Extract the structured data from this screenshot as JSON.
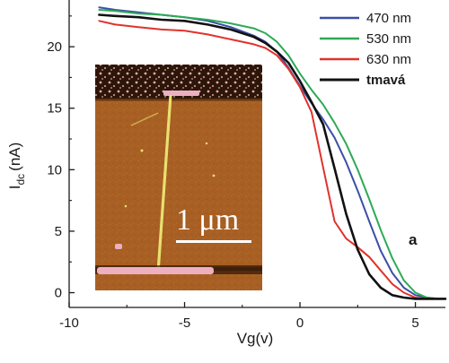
{
  "chart_data": {
    "type": "line",
    "xlabel": "Vg(v)",
    "ylabel_main": "I",
    "ylabel_sub": "dc",
    "ylabel_unit": "(nA)",
    "xlim": [
      -10,
      6.3
    ],
    "ylim": [
      -1.2,
      23.8
    ],
    "x_ticks": [
      -10,
      -5,
      0,
      5
    ],
    "x_tick_labels": [
      "-10",
      "-5",
      "0",
      "5"
    ],
    "y_ticks": [
      0,
      5,
      10,
      15,
      20
    ],
    "y_tick_labels": [
      "0",
      "5",
      "10",
      "15",
      "20"
    ],
    "grid": false,
    "legend_position": "top-right",
    "panel_label": "a",
    "inset": {
      "kind": "AFM image",
      "scale_bar_label": "1 μm",
      "colors": {
        "background": "#a85f23",
        "wire": "#e8e070",
        "pads": "#ecb0c0",
        "dark_band": "#2c1608"
      }
    },
    "series": [
      {
        "name": "470 nm",
        "color": "#3b4fa8",
        "bold": false,
        "x": [
          -8.7,
          -8.0,
          -7.0,
          -6.0,
          -5.0,
          -4.0,
          -3.0,
          -2.0,
          -1.5,
          -1.0,
          -0.5,
          0.0,
          0.5,
          1.0,
          1.5,
          2.0,
          2.5,
          3.0,
          3.5,
          4.0,
          4.5,
          5.0,
          5.5,
          6.0,
          6.3
        ],
        "y": [
          23.2,
          23.0,
          22.8,
          22.6,
          22.4,
          22.1,
          21.6,
          20.9,
          20.4,
          19.6,
          18.3,
          16.8,
          15.4,
          14.1,
          12.6,
          10.6,
          8.3,
          5.8,
          3.4,
          1.6,
          0.4,
          -0.2,
          -0.4,
          -0.5,
          -0.5
        ]
      },
      {
        "name": "530 nm",
        "color": "#2daa55",
        "bold": false,
        "x": [
          -8.7,
          -8.0,
          -7.0,
          -6.0,
          -5.0,
          -4.0,
          -3.0,
          -2.0,
          -1.5,
          -1.0,
          -0.5,
          0.0,
          0.5,
          1.0,
          1.5,
          2.0,
          2.5,
          3.0,
          3.5,
          4.0,
          4.5,
          5.0,
          5.5,
          6.0,
          6.3
        ],
        "y": [
          23.0,
          22.9,
          22.7,
          22.6,
          22.4,
          22.2,
          21.9,
          21.5,
          21.1,
          20.4,
          19.3,
          17.8,
          16.5,
          15.3,
          13.8,
          12.1,
          10.0,
          7.6,
          5.1,
          2.8,
          1.0,
          0.0,
          -0.4,
          -0.5,
          -0.5
        ]
      },
      {
        "name": "630 nm",
        "color": "#e0332b",
        "bold": false,
        "x": [
          -8.7,
          -8.0,
          -7.0,
          -6.0,
          -5.0,
          -4.0,
          -3.0,
          -2.0,
          -1.5,
          -1.0,
          -0.5,
          0.0,
          0.5,
          1.0,
          1.5,
          2.0,
          2.5,
          3.0,
          3.5,
          4.0,
          4.5,
          5.0,
          5.5,
          6.0,
          6.3
        ],
        "y": [
          22.1,
          21.8,
          21.6,
          21.4,
          21.3,
          21.0,
          20.6,
          20.2,
          19.9,
          19.3,
          18.2,
          16.7,
          14.7,
          10.2,
          5.8,
          4.4,
          3.7,
          2.9,
          1.8,
          0.7,
          0.0,
          -0.4,
          -0.5,
          -0.5,
          -0.5
        ]
      },
      {
        "name": "tmavá",
        "color": "#111111",
        "bold": true,
        "x": [
          -8.7,
          -8.0,
          -7.0,
          -6.0,
          -5.0,
          -4.0,
          -3.0,
          -2.0,
          -1.5,
          -1.0,
          -0.5,
          0.0,
          0.5,
          1.0,
          1.5,
          2.0,
          2.5,
          3.0,
          3.5,
          4.0,
          4.5,
          5.0,
          5.5,
          6.0,
          6.3
        ],
        "y": [
          22.6,
          22.5,
          22.4,
          22.2,
          22.1,
          21.8,
          21.4,
          20.8,
          20.3,
          19.6,
          18.7,
          17.2,
          15.5,
          13.7,
          10.1,
          6.4,
          3.5,
          1.5,
          0.4,
          -0.2,
          -0.4,
          -0.5,
          -0.5,
          -0.5,
          -0.5
        ]
      }
    ]
  }
}
